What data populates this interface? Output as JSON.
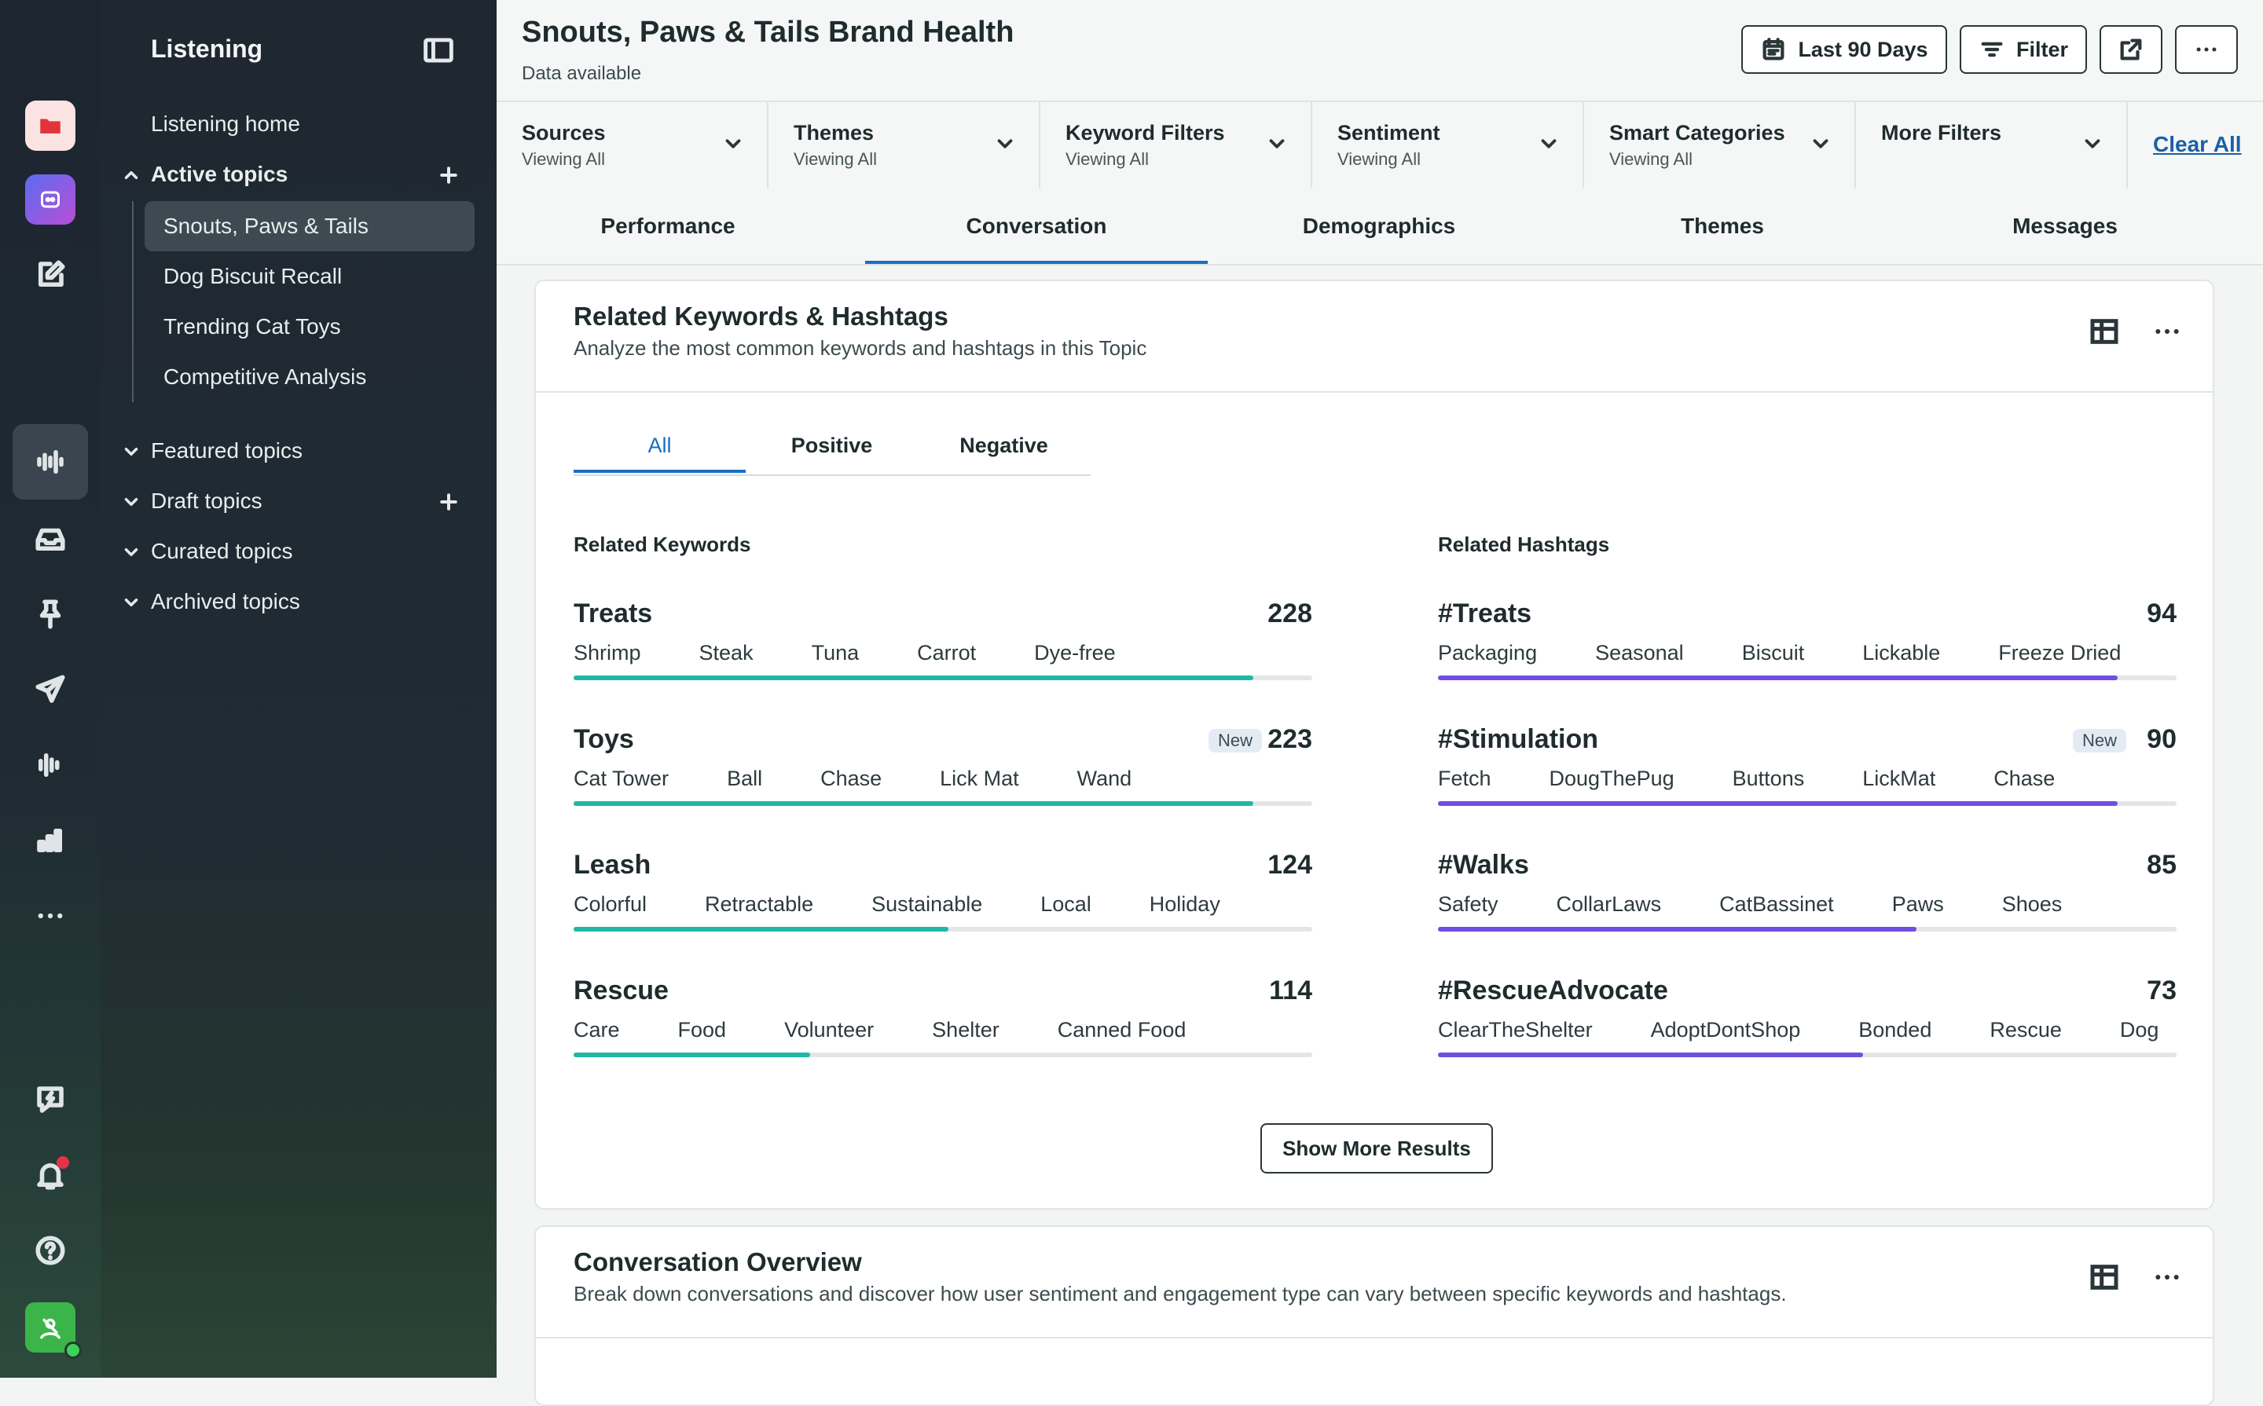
{
  "rail": {
    "icons": [
      "folder-icon",
      "bot-icon",
      "compose-icon",
      "listening-icon",
      "inbox-icon",
      "pin-icon",
      "send-icon",
      "waveform-icon",
      "bar-chart-icon",
      "more-icon",
      "feedback-icon",
      "bell-icon",
      "help-icon",
      "user-avatar"
    ]
  },
  "nav": {
    "title": "Listening",
    "listening_home": "Listening home",
    "active_topics": "Active topics",
    "topics": [
      "Snouts, Paws & Tails",
      "Dog Biscuit Recall",
      "Trending Cat Toys",
      "Competitive Analysis"
    ],
    "featured": "Featured topics",
    "draft": "Draft topics",
    "curated": "Curated topics",
    "archived": "Archived topics"
  },
  "header": {
    "title": "Snouts, Paws & Tails Brand Health",
    "subtitle": "Data available",
    "date_button": "Last 90 Days",
    "filter_button": "Filter"
  },
  "filters": [
    {
      "label": "Sources",
      "value": "Viewing All"
    },
    {
      "label": "Themes",
      "value": "Viewing All"
    },
    {
      "label": "Keyword Filters",
      "value": "Viewing All"
    },
    {
      "label": "Sentiment",
      "value": "Viewing All"
    },
    {
      "label": "Smart Categories",
      "value": "Viewing All"
    },
    {
      "label": "More Filters",
      "value": ""
    }
  ],
  "clear_all": "Clear All",
  "tabs": [
    "Performance",
    "Conversation",
    "Demographics",
    "Themes",
    "Messages"
  ],
  "active_tab": "Conversation",
  "keywords_card": {
    "title": "Related Keywords & Hashtags",
    "description": "Analyze the most common keywords and hashtags in this Topic",
    "subtabs": [
      "All",
      "Positive",
      "Negative"
    ],
    "keywords_heading": "Related Keywords",
    "hashtags_heading": "Related Hashtags",
    "new_label": "New",
    "keywords": [
      {
        "name": "Treats",
        "count": "228",
        "is_new": false,
        "fill": 0.92,
        "related": [
          "Shrimp",
          "Steak",
          "Tuna",
          "Carrot",
          "Dye-free"
        ]
      },
      {
        "name": "Toys",
        "count": "223",
        "is_new": true,
        "fill": 0.92,
        "related": [
          "Cat Tower",
          "Ball",
          "Chase",
          "Lick Mat",
          "Wand"
        ]
      },
      {
        "name": "Leash",
        "count": "124",
        "is_new": false,
        "fill": 0.507,
        "related": [
          "Colorful",
          "Retractable",
          "Sustainable",
          "Local",
          "Holiday"
        ]
      },
      {
        "name": "Rescue",
        "count": "114",
        "is_new": false,
        "fill": 0.32,
        "related": [
          "Care",
          "Food",
          "Volunteer",
          "Shelter",
          "Canned Food"
        ]
      }
    ],
    "hashtags": [
      {
        "name": "#Treats",
        "count": "94",
        "is_new": false,
        "fill": 0.92,
        "related": [
          "Packaging",
          "Seasonal",
          "Biscuit",
          "Lickable",
          "Freeze Dried"
        ]
      },
      {
        "name": "#Stimulation",
        "count": "90",
        "is_new": true,
        "fill": 0.92,
        "related": [
          "Fetch",
          "DougThePug",
          "Buttons",
          "LickMat",
          "Chase"
        ]
      },
      {
        "name": "#Walks",
        "count": "85",
        "is_new": false,
        "fill": 0.648,
        "related": [
          "Safety",
          "CollarLaws",
          "CatBassinet",
          "Paws",
          "Shoes"
        ]
      },
      {
        "name": "#RescueAdvocate",
        "count": "73",
        "is_new": false,
        "fill": 0.575,
        "related": [
          "ClearTheShelter",
          "AdoptDontShop",
          "Bonded",
          "Rescue",
          "Dog"
        ]
      }
    ],
    "show_more": "Show More Results",
    "keyword_color": "#1fb8a6",
    "hashtag_color": "#6f4ee0"
  },
  "overview_card": {
    "title": "Conversation Overview",
    "description": "Break down conversations and discover how user sentiment and engagement type can vary between specific keywords and hashtags."
  }
}
